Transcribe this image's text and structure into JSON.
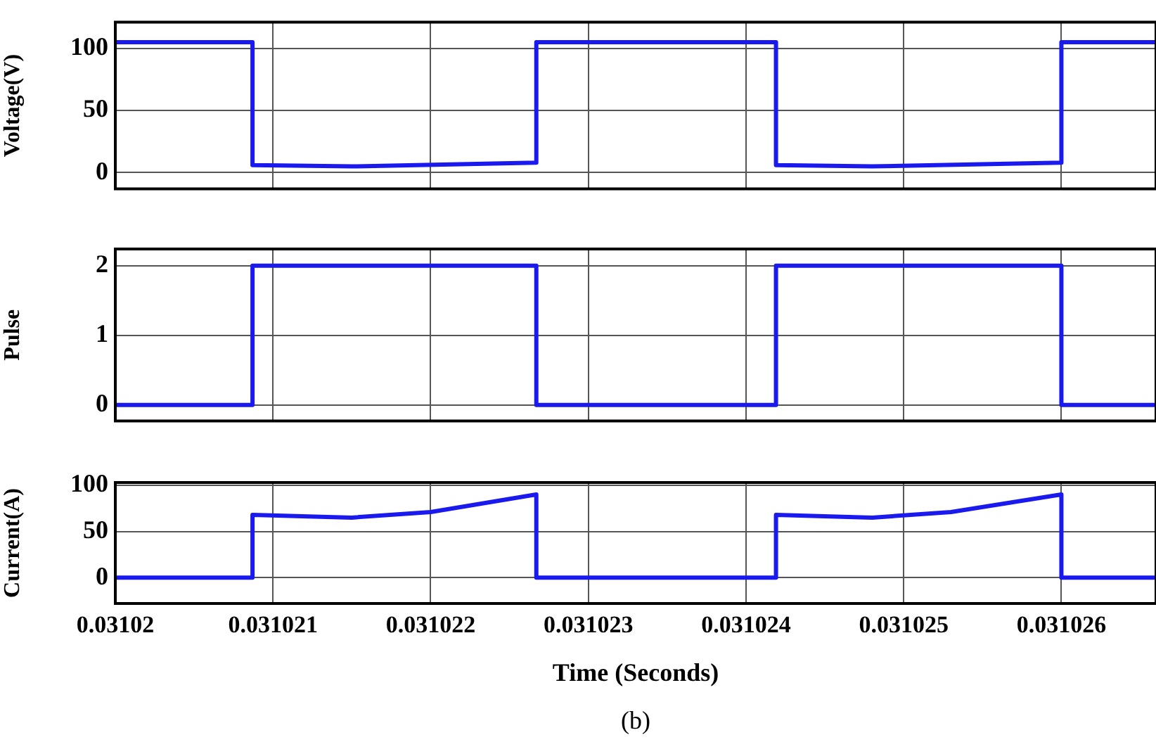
{
  "chart_data": [
    {
      "type": "line",
      "ylabel": "Voltage(V)",
      "xlim": [
        0.03102,
        0.0310266
      ],
      "xticks": [
        0.03102,
        0.031021,
        0.031022,
        0.031023,
        0.031024,
        0.031025,
        0.031026
      ],
      "ylim": [
        -13,
        121
      ],
      "yticks": [
        0,
        50,
        100
      ],
      "grid": true,
      "legend": false,
      "tick_labels": "y",
      "marker": "none",
      "line_style": "solid",
      "series": [
        {
          "color": "#1a1aee",
          "x": [
            0.03102,
            0.03102087,
            0.03102087,
            0.0310215,
            0.03102267,
            0.03102267,
            0.03102419,
            0.03102419,
            0.0310248,
            0.031026,
            0.031026,
            0.0310266
          ],
          "values": [
            105,
            105,
            6,
            5,
            8,
            105,
            105,
            6,
            5,
            8,
            105,
            105
          ]
        }
      ]
    },
    {
      "type": "line",
      "ylabel": "Pulse",
      "xlim": [
        0.03102,
        0.0310266
      ],
      "xticks": [
        0.03102,
        0.031021,
        0.031022,
        0.031023,
        0.031024,
        0.031025,
        0.031026
      ],
      "ylim": [
        -0.23,
        2.24
      ],
      "yticks": [
        0,
        1,
        2
      ],
      "grid": true,
      "legend": false,
      "tick_labels": "y",
      "marker": "none",
      "line_style": "solid",
      "series": [
        {
          "color": "#1a1aee",
          "x": [
            0.03102,
            0.03102087,
            0.03102087,
            0.03102267,
            0.03102267,
            0.03102419,
            0.03102419,
            0.031026,
            0.031026,
            0.0310266
          ],
          "values": [
            0,
            0,
            2,
            2,
            0,
            0,
            2,
            2,
            0,
            0
          ]
        }
      ]
    },
    {
      "type": "line",
      "ylabel": "Current(A)",
      "xlabel": "Time (Seconds)",
      "annotations": [
        "(b)"
      ],
      "xlim": [
        0.03102,
        0.0310266
      ],
      "xticks": [
        0.03102,
        0.031021,
        0.031022,
        0.031023,
        0.031024,
        0.031025,
        0.031026
      ],
      "ylim": [
        -28,
        103
      ],
      "yticks": [
        0,
        50,
        100
      ],
      "grid": true,
      "legend": false,
      "marker": "none",
      "line_style": "solid",
      "series": [
        {
          "color": "#1a1aee",
          "x": [
            0.03102,
            0.03102087,
            0.03102087,
            0.0310215,
            0.031022,
            0.03102267,
            0.03102267,
            0.03102419,
            0.03102419,
            0.0310248,
            0.0310253,
            0.031026,
            0.031026,
            0.0310266
          ],
          "values": [
            0,
            0,
            68,
            65,
            71,
            90,
            0,
            0,
            68,
            65,
            71,
            90,
            0,
            0
          ]
        }
      ]
    }
  ]
}
